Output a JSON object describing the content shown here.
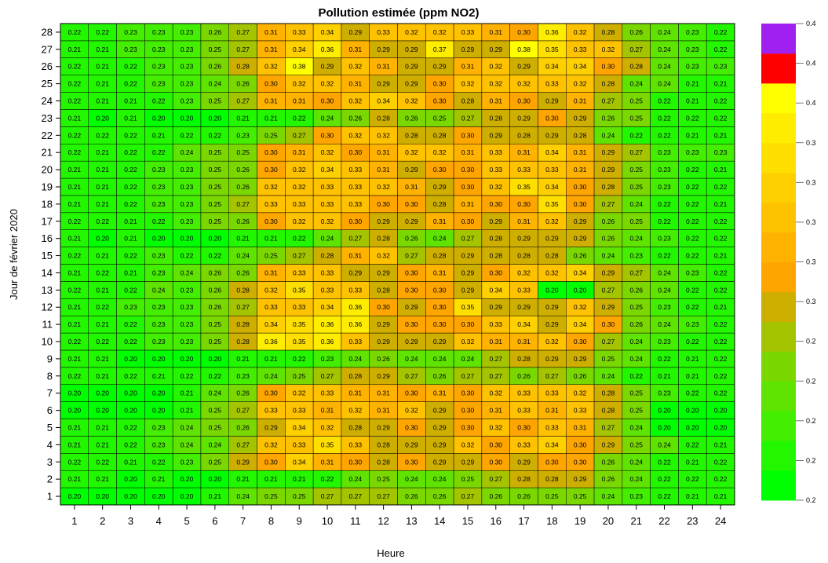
{
  "chart_data": {
    "type": "heatmap",
    "title": "Pollution estimée (ppm NO2)",
    "xlabel": "Heure",
    "ylabel": "Jour de février 2020",
    "x": [
      1,
      2,
      3,
      4,
      5,
      6,
      7,
      8,
      9,
      10,
      11,
      12,
      13,
      14,
      15,
      16,
      17,
      18,
      19,
      20,
      21,
      22,
      23,
      24
    ],
    "y": [
      1,
      2,
      3,
      4,
      5,
      6,
      7,
      8,
      9,
      10,
      11,
      12,
      13,
      14,
      15,
      16,
      17,
      18,
      19,
      20,
      21,
      22,
      23,
      24,
      25,
      26,
      27,
      28
    ],
    "values": [
      [
        0.2,
        0.2,
        0.2,
        0.2,
        0.2,
        0.21,
        0.24,
        0.25,
        0.25,
        0.27,
        0.27,
        0.27,
        0.26,
        0.26,
        0.27,
        0.26,
        0.26,
        0.25,
        0.25,
        0.24,
        0.23,
        0.22,
        0.21,
        0.21
      ],
      [
        0.21,
        0.21,
        0.2,
        0.21,
        0.2,
        0.2,
        0.21,
        0.21,
        0.21,
        0.22,
        0.24,
        0.25,
        0.24,
        0.24,
        0.25,
        0.27,
        0.28,
        0.28,
        0.29,
        0.26,
        0.24,
        0.22,
        0.22,
        0.22
      ],
      [
        0.22,
        0.22,
        0.21,
        0.22,
        0.23,
        0.25,
        0.29,
        0.3,
        0.34,
        0.31,
        0.3,
        0.28,
        0.3,
        0.29,
        0.29,
        0.3,
        0.29,
        0.3,
        0.3,
        0.26,
        0.24,
        0.22,
        0.21,
        0.22
      ],
      [
        0.21,
        0.21,
        0.22,
        0.23,
        0.24,
        0.24,
        0.27,
        0.32,
        0.33,
        0.35,
        0.33,
        0.28,
        0.29,
        0.29,
        0.32,
        0.3,
        0.33,
        0.34,
        0.3,
        0.29,
        0.25,
        0.24,
        0.22,
        0.21
      ],
      [
        0.21,
        0.21,
        0.22,
        0.23,
        0.24,
        0.25,
        0.26,
        0.29,
        0.34,
        0.32,
        0.28,
        0.29,
        0.3,
        0.29,
        0.3,
        0.32,
        0.3,
        0.33,
        0.31,
        0.27,
        0.24,
        0.2,
        0.2,
        0.2
      ],
      [
        0.2,
        0.2,
        0.2,
        0.2,
        0.21,
        0.25,
        0.27,
        0.33,
        0.33,
        0.31,
        0.32,
        0.31,
        0.32,
        0.29,
        0.3,
        0.31,
        0.33,
        0.31,
        0.33,
        0.28,
        0.25,
        0.2,
        0.2,
        0.2
      ],
      [
        0.2,
        0.2,
        0.2,
        0.2,
        0.21,
        0.24,
        0.26,
        0.3,
        0.32,
        0.33,
        0.31,
        0.31,
        0.3,
        0.31,
        0.3,
        0.32,
        0.33,
        0.33,
        0.32,
        0.28,
        0.25,
        0.23,
        0.22,
        0.22
      ],
      [
        0.22,
        0.21,
        0.22,
        0.21,
        0.22,
        0.22,
        0.23,
        0.24,
        0.25,
        0.27,
        0.28,
        0.29,
        0.27,
        0.26,
        0.27,
        0.27,
        0.26,
        0.27,
        0.26,
        0.24,
        0.22,
        0.21,
        0.21,
        0.22
      ],
      [
        0.21,
        0.21,
        0.2,
        0.2,
        0.2,
        0.2,
        0.21,
        0.21,
        0.22,
        0.23,
        0.24,
        0.26,
        0.24,
        0.24,
        0.24,
        0.27,
        0.28,
        0.29,
        0.29,
        0.25,
        0.24,
        0.22,
        0.21,
        0.22
      ],
      [
        0.22,
        0.22,
        0.22,
        0.23,
        0.23,
        0.25,
        0.28,
        0.36,
        0.35,
        0.36,
        0.33,
        0.29,
        0.29,
        0.29,
        0.32,
        0.31,
        0.31,
        0.32,
        0.3,
        0.27,
        0.24,
        0.23,
        0.22,
        0.22
      ],
      [
        0.21,
        0.21,
        0.22,
        0.23,
        0.23,
        0.25,
        0.28,
        0.34,
        0.35,
        0.36,
        0.36,
        0.29,
        0.3,
        0.3,
        0.3,
        0.33,
        0.34,
        0.29,
        0.34,
        0.3,
        0.26,
        0.24,
        0.23,
        0.22
      ],
      [
        0.21,
        0.22,
        0.23,
        0.23,
        0.23,
        0.26,
        0.27,
        0.33,
        0.33,
        0.34,
        0.36,
        0.3,
        0.29,
        0.3,
        0.35,
        0.29,
        0.29,
        0.29,
        0.32,
        0.29,
        0.25,
        0.23,
        0.22,
        0.21
      ],
      [
        0.22,
        0.21,
        0.22,
        0.24,
        0.23,
        0.26,
        0.28,
        0.32,
        0.35,
        0.33,
        0.33,
        0.28,
        0.3,
        0.3,
        0.29,
        0.34,
        0.33,
        0.2,
        0.2,
        0.27,
        0.26,
        0.24,
        0.22,
        0.22
      ],
      [
        0.21,
        0.22,
        0.21,
        0.23,
        0.24,
        0.26,
        0.26,
        0.31,
        0.33,
        0.33,
        0.29,
        0.29,
        0.3,
        0.31,
        0.29,
        0.3,
        0.32,
        0.32,
        0.34,
        0.29,
        0.27,
        0.24,
        0.23,
        0.22
      ],
      [
        0.22,
        0.21,
        0.22,
        0.23,
        0.22,
        0.22,
        0.24,
        0.25,
        0.27,
        0.28,
        0.31,
        0.32,
        0.27,
        0.28,
        0.29,
        0.28,
        0.28,
        0.28,
        0.26,
        0.24,
        0.23,
        0.22,
        0.22,
        0.21
      ],
      [
        0.21,
        0.2,
        0.21,
        0.2,
        0.2,
        0.2,
        0.21,
        0.21,
        0.22,
        0.24,
        0.27,
        0.28,
        0.26,
        0.24,
        0.27,
        0.28,
        0.29,
        0.29,
        0.29,
        0.26,
        0.24,
        0.23,
        0.22,
        0.22
      ],
      [
        0.22,
        0.22,
        0.21,
        0.22,
        0.23,
        0.25,
        0.26,
        0.3,
        0.32,
        0.32,
        0.3,
        0.29,
        0.29,
        0.31,
        0.3,
        0.29,
        0.31,
        0.32,
        0.29,
        0.26,
        0.25,
        0.22,
        0.22,
        0.22
      ],
      [
        0.21,
        0.21,
        0.22,
        0.23,
        0.23,
        0.25,
        0.27,
        0.33,
        0.33,
        0.33,
        0.33,
        0.3,
        0.3,
        0.28,
        0.31,
        0.3,
        0.3,
        0.35,
        0.3,
        0.27,
        0.24,
        0.22,
        0.22,
        0.21
      ],
      [
        0.21,
        0.21,
        0.22,
        0.23,
        0.23,
        0.25,
        0.26,
        0.32,
        0.32,
        0.33,
        0.33,
        0.32,
        0.31,
        0.29,
        0.3,
        0.32,
        0.35,
        0.34,
        0.3,
        0.28,
        0.25,
        0.23,
        0.22,
        0.22
      ],
      [
        0.21,
        0.21,
        0.22,
        0.23,
        0.23,
        0.25,
        0.26,
        0.3,
        0.32,
        0.34,
        0.33,
        0.31,
        0.29,
        0.3,
        0.3,
        0.33,
        0.33,
        0.33,
        0.31,
        0.29,
        0.25,
        0.23,
        0.22,
        0.21
      ],
      [
        0.22,
        0.21,
        0.22,
        0.22,
        0.24,
        0.25,
        0.25,
        0.3,
        0.31,
        0.32,
        0.3,
        0.31,
        0.32,
        0.32,
        0.31,
        0.33,
        0.31,
        0.34,
        0.31,
        0.29,
        0.27,
        0.23,
        0.23,
        0.23
      ],
      [
        0.22,
        0.22,
        0.22,
        0.21,
        0.22,
        0.22,
        0.23,
        0.25,
        0.27,
        0.3,
        0.32,
        0.32,
        0.28,
        0.28,
        0.3,
        0.29,
        0.28,
        0.29,
        0.28,
        0.24,
        0.22,
        0.22,
        0.21,
        0.21
      ],
      [
        0.21,
        0.2,
        0.21,
        0.2,
        0.2,
        0.2,
        0.21,
        0.21,
        0.22,
        0.24,
        0.26,
        0.28,
        0.26,
        0.25,
        0.27,
        0.28,
        0.29,
        0.3,
        0.29,
        0.26,
        0.25,
        0.22,
        0.22,
        0.22
      ],
      [
        0.22,
        0.21,
        0.21,
        0.22,
        0.23,
        0.25,
        0.27,
        0.31,
        0.31,
        0.3,
        0.32,
        0.34,
        0.32,
        0.3,
        0.28,
        0.31,
        0.3,
        0.29,
        0.31,
        0.27,
        0.25,
        0.22,
        0.21,
        0.22
      ],
      [
        0.22,
        0.21,
        0.22,
        0.23,
        0.23,
        0.24,
        0.26,
        0.3,
        0.32,
        0.32,
        0.31,
        0.29,
        0.29,
        0.3,
        0.32,
        0.32,
        0.32,
        0.33,
        0.32,
        0.28,
        0.24,
        0.24,
        0.21,
        0.21
      ],
      [
        0.22,
        0.21,
        0.22,
        0.23,
        0.23,
        0.26,
        0.28,
        0.32,
        0.38,
        0.29,
        0.32,
        0.31,
        0.29,
        0.29,
        0.31,
        0.32,
        0.29,
        0.34,
        0.34,
        0.3,
        0.28,
        0.24,
        0.23,
        0.23
      ],
      [
        0.21,
        0.21,
        0.23,
        0.23,
        0.23,
        0.25,
        0.27,
        0.31,
        0.34,
        0.36,
        0.31,
        0.29,
        0.29,
        0.37,
        0.29,
        0.29,
        0.38,
        0.35,
        0.33,
        0.32,
        0.27,
        0.24,
        0.23,
        0.22
      ],
      [
        0.22,
        0.22,
        0.23,
        0.23,
        0.23,
        0.26,
        0.27,
        0.31,
        0.33,
        0.34,
        0.29,
        0.33,
        0.32,
        0.32,
        0.33,
        0.31,
        0.3,
        0.36,
        0.32,
        0.28,
        0.26,
        0.24,
        0.23,
        0.22
      ]
    ],
    "legend_labels": [
      "0.4",
      "0.4",
      "0.4",
      "0.3",
      "0.3",
      "0.3",
      "0.3",
      "0.3",
      "0.2",
      "0.2",
      "0.2",
      "0.2",
      "0.2"
    ],
    "colorscale": [
      "#00ff00",
      "#22f700",
      "#44ee00",
      "#5fe300",
      "#7ad800",
      "#a4c400",
      "#ceaf00",
      "#ffa500",
      "#ffb300",
      "#ffc200",
      "#ffd000",
      "#ffdf00",
      "#ffed00",
      "#ffff00",
      "#ff0000",
      "#a020f0"
    ],
    "grid": true,
    "legend_position": "right"
  }
}
